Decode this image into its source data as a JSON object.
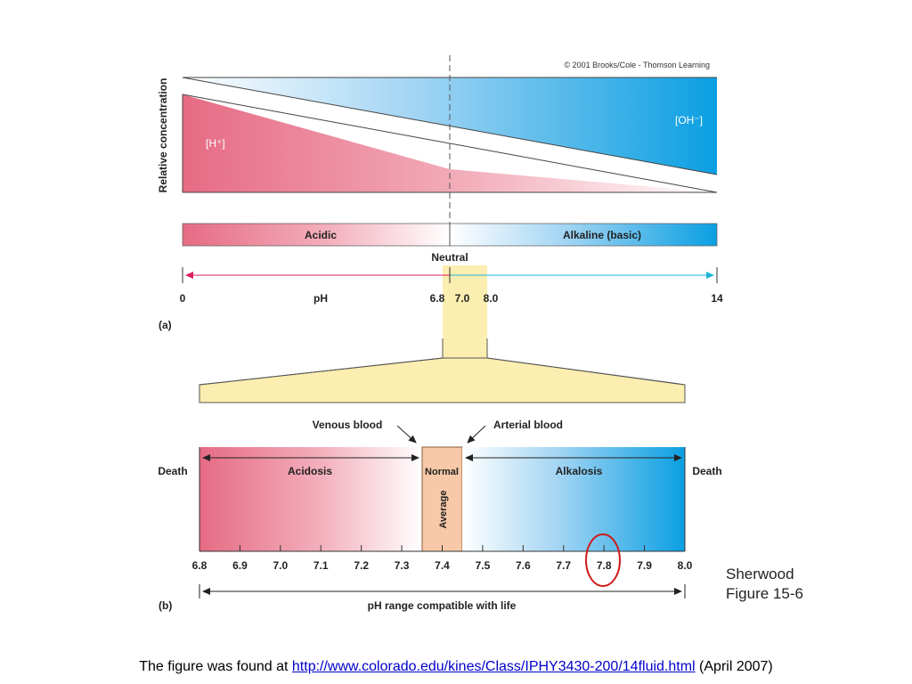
{
  "panel_a": {
    "copyright": "© 2001 Brooks/Cole - Thomson Learning",
    "y_axis_label": "Relative concentration",
    "h_ion_label": "[H⁺]",
    "oh_ion_label": "[OH⁻]",
    "acidic_label": "Acidic",
    "alkaline_label": "Alkaline (basic)",
    "neutral_label": "Neutral",
    "ph_label": "pH",
    "tick_0": "0",
    "tick_68": "6.8",
    "tick_70": "7.0",
    "tick_80": "8.0",
    "tick_14": "14",
    "panel_label": "(a)",
    "neutral_ph": 7.0,
    "zoom_range": [
      6.8,
      8.0
    ]
  },
  "panel_b": {
    "venous_label": "Venous blood",
    "arterial_label": "Arterial blood",
    "death_left": "Death",
    "death_right": "Death",
    "acidosis_label": "Acidosis",
    "normal_label": "Normal",
    "average_label": "Average",
    "alkalosis_label": "Alkalosis",
    "ticks": [
      "6.8",
      "6.9",
      "7.0",
      "7.1",
      "7.2",
      "7.3",
      "7.4",
      "7.5",
      "7.6",
      "7.7",
      "7.8",
      "7.9",
      "8.0"
    ],
    "normal_range": [
      7.35,
      7.45
    ],
    "circled_tick": "7.8",
    "range_label": "pH range compatible with life",
    "panel_label": "(b)"
  },
  "credit": {
    "line1": "Sherwood",
    "line2": "Figure 15-6"
  },
  "caption": {
    "prefix": "The figure was found at ",
    "link": "http://www.colorado.edu/kines/Class/IPHY3430-200/14fluid.html",
    "suffix": " (April 2007)"
  },
  "colors": {
    "acid_red": "#e8788c",
    "base_blue": "#1aa6e6",
    "normal_orange": "#f7c9a8",
    "zoom_yellow": "#fbeeb0",
    "circle_red": "#d01818",
    "link_blue": "#0000cc"
  }
}
